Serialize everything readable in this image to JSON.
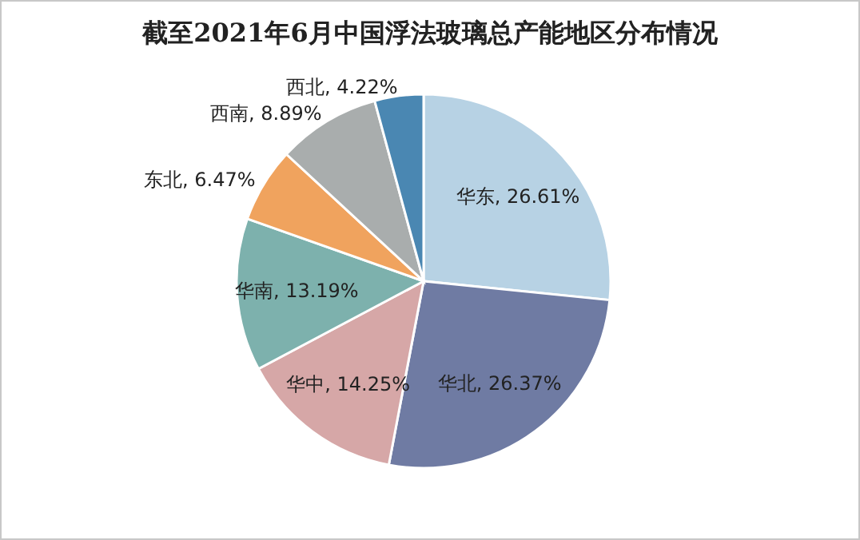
{
  "chart_data": {
    "type": "pie",
    "title": "截至2021年6月中国浮法玻璃总产能地区分布情况",
    "categories": [
      "华东",
      "华北",
      "华中",
      "华南",
      "东北",
      "西南",
      "西北"
    ],
    "values": [
      26.61,
      26.37,
      14.25,
      13.19,
      6.47,
      8.89,
      4.22
    ],
    "colors": [
      "#b7d2e4",
      "#6f7ba3",
      "#d6a7a7",
      "#7db1ad",
      "#f0a35e",
      "#a9adad",
      "#4a87b2"
    ],
    "value_labels": [
      "26.61%",
      "26.37%",
      "14.25%",
      "13.19%",
      "6.47%",
      "8.89%",
      "4.22%"
    ]
  }
}
